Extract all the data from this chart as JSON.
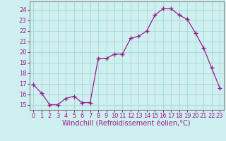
{
  "x": [
    0,
    1,
    2,
    3,
    4,
    5,
    6,
    7,
    8,
    9,
    10,
    11,
    12,
    13,
    14,
    15,
    16,
    17,
    18,
    19,
    20,
    21,
    22,
    23
  ],
  "y": [
    16.9,
    16.1,
    15.0,
    15.0,
    15.6,
    15.8,
    15.2,
    15.2,
    19.4,
    19.4,
    19.8,
    19.8,
    21.3,
    21.5,
    22.0,
    23.5,
    24.1,
    24.1,
    23.5,
    23.1,
    21.8,
    20.4,
    18.5,
    16.6
  ],
  "line_color": "#9b1b8e",
  "marker": "+",
  "marker_size": 4,
  "bg_color": "#cff0f0",
  "grid_color": "#aadada",
  "xlabel": "Windchill (Refroidissement éolien,°C)",
  "xlabel_fontsize": 7,
  "tick_fontsize": 6,
  "ylim": [
    14.5,
    24.8
  ],
  "xlim": [
    -0.5,
    23.5
  ],
  "yticks": [
    15,
    16,
    17,
    18,
    19,
    20,
    21,
    22,
    23,
    24
  ],
  "xticks": [
    0,
    1,
    2,
    3,
    4,
    5,
    6,
    7,
    8,
    9,
    10,
    11,
    12,
    13,
    14,
    15,
    16,
    17,
    18,
    19,
    20,
    21,
    22,
    23
  ]
}
